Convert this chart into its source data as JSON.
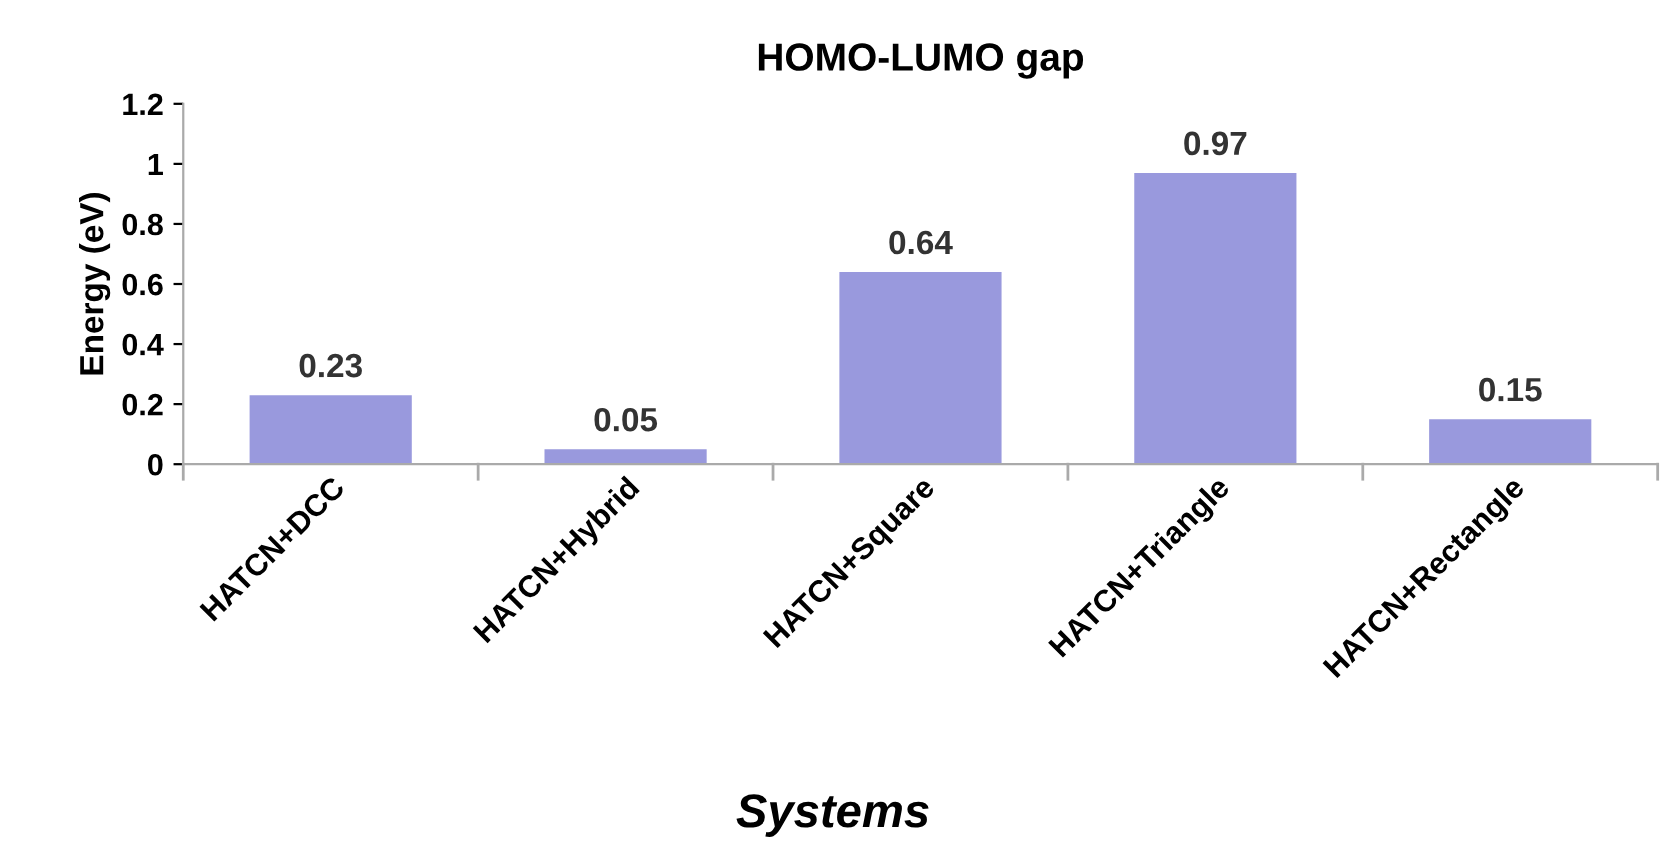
{
  "chart_data": {
    "type": "bar",
    "title": "HOMO-LUMO gap",
    "xlabel": "Systems",
    "ylabel": "Energy (eV)",
    "categories": [
      "HATCN+DCC",
      "HATCN+Hybrid",
      "HATCN+Square",
      "HATCN+Triangle",
      "HATCN+Rectangle"
    ],
    "values": [
      0.23,
      0.05,
      0.64,
      0.97,
      0.15
    ],
    "color": "#9999dd",
    "ylim": [
      0,
      1.2
    ],
    "yticks": [
      0,
      0.2,
      0.4,
      0.6,
      0.8,
      1,
      1.2
    ],
    "data_labels": true,
    "grid": false,
    "legend": false
  }
}
